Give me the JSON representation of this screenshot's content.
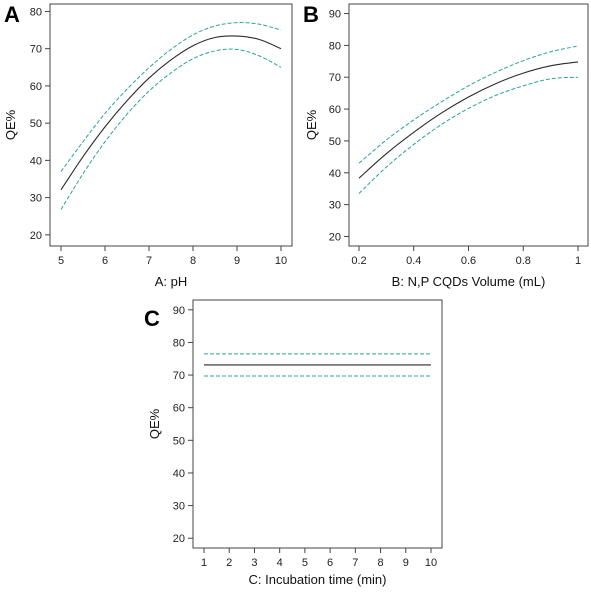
{
  "colors": {
    "fit": "#2b2b2b",
    "ci": "#2aa39c",
    "frame": "#444444"
  },
  "chart_data": [
    {
      "panel": "A",
      "type": "line",
      "xlabel": "A: pH",
      "ylabel": "QE%",
      "xlim": [
        5,
        10
      ],
      "ylim": [
        17,
        82
      ],
      "xticks": [
        5,
        6,
        7,
        8,
        9,
        10
      ],
      "yticks": [
        20,
        30,
        40,
        50,
        60,
        70,
        80
      ],
      "series": [
        {
          "role": "fit",
          "x": [
            5,
            5.5,
            6,
            6.5,
            7,
            7.5,
            8,
            8.5,
            9,
            9.5,
            10
          ],
          "values": [
            32.1,
            41.0,
            49.0,
            56.0,
            62.1,
            67.0,
            70.8,
            73.0,
            73.4,
            72.5,
            70.0
          ]
        },
        {
          "role": "upper-95-ci",
          "x": [
            5,
            5.5,
            6,
            6.5,
            7,
            7.5,
            8,
            8.5,
            9,
            9.5,
            10
          ],
          "values": [
            37.0,
            45.0,
            52.6,
            59.1,
            64.9,
            69.8,
            73.7,
            76.1,
            77.0,
            76.6,
            75.0
          ]
        },
        {
          "role": "lower-95-ci",
          "x": [
            5,
            5.5,
            6,
            6.5,
            7,
            7.5,
            8,
            8.5,
            9,
            9.5,
            10
          ],
          "values": [
            26.8,
            36.4,
            45.0,
            52.4,
            58.6,
            63.5,
            67.3,
            69.4,
            69.8,
            68.1,
            65.0
          ]
        }
      ]
    },
    {
      "panel": "B",
      "type": "line",
      "xlabel": "B: N,P CQDs Volume (mL)",
      "ylabel": "QE%",
      "xlim": [
        0.2,
        1
      ],
      "ylim": [
        17,
        93
      ],
      "xticks": [
        "0.2",
        "0.4",
        "0.6",
        "0.8",
        "1"
      ],
      "yticks": [
        20,
        30,
        40,
        50,
        60,
        70,
        80,
        90
      ],
      "series": [
        {
          "role": "fit",
          "x": [
            0.2,
            0.3,
            0.4,
            0.5,
            0.6,
            0.7,
            0.8,
            0.9,
            1.0
          ],
          "values": [
            38.3,
            46.0,
            52.7,
            58.7,
            63.8,
            68.0,
            71.3,
            73.6,
            74.8
          ]
        },
        {
          "role": "upper-95-ci",
          "x": [
            0.2,
            0.3,
            0.4,
            0.5,
            0.6,
            0.7,
            0.8,
            0.9,
            1.0
          ],
          "values": [
            43.0,
            50.3,
            56.6,
            62.2,
            67.3,
            71.6,
            75.2,
            78.0,
            79.8
          ]
        },
        {
          "role": "lower-95-ci",
          "x": [
            0.2,
            0.3,
            0.4,
            0.5,
            0.6,
            0.7,
            0.8,
            0.9,
            1.0
          ],
          "values": [
            33.5,
            41.8,
            48.9,
            55.1,
            60.2,
            64.3,
            67.3,
            69.5,
            70.0
          ]
        }
      ]
    },
    {
      "panel": "C",
      "type": "line",
      "xlabel": "C: Incubation time (min)",
      "ylabel": "QE%",
      "xlim": [
        1,
        10
      ],
      "ylim": [
        17,
        93
      ],
      "xticks": [
        1,
        2,
        3,
        4,
        5,
        6,
        7,
        8,
        9,
        10
      ],
      "yticks": [
        20,
        30,
        40,
        50,
        60,
        70,
        80,
        90
      ],
      "series": [
        {
          "role": "fit",
          "x": [
            1,
            10
          ],
          "values": [
            73.1,
            73.1
          ]
        },
        {
          "role": "upper-95-ci",
          "x": [
            1,
            10
          ],
          "values": [
            76.5,
            76.5
          ]
        },
        {
          "role": "lower-95-ci",
          "x": [
            1,
            10
          ],
          "values": [
            69.7,
            69.7
          ]
        }
      ]
    }
  ]
}
